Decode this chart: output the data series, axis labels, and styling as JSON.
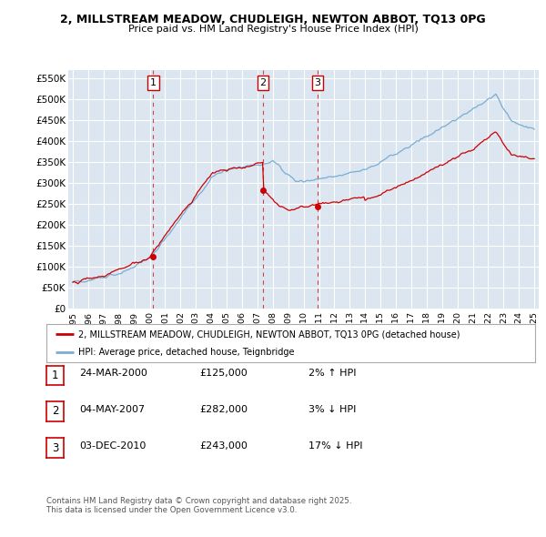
{
  "title_line1": "2, MILLSTREAM MEADOW, CHUDLEIGH, NEWTON ABBOT, TQ13 0PG",
  "title_line2": "Price paid vs. HM Land Registry's House Price Index (HPI)",
  "ylim": [
    0,
    570000
  ],
  "yticks": [
    0,
    50000,
    100000,
    150000,
    200000,
    250000,
    300000,
    350000,
    400000,
    450000,
    500000,
    550000
  ],
  "ytick_labels": [
    "£0",
    "£50K",
    "£100K",
    "£150K",
    "£200K",
    "£250K",
    "£300K",
    "£350K",
    "£400K",
    "£450K",
    "£500K",
    "£550K"
  ],
  "background_color": "#ffffff",
  "plot_bg_color": "#dce6f0",
  "grid_color": "#ffffff",
  "sale_color": "#cc0000",
  "hpi_color": "#7aadd4",
  "vline_color": "#cc0000",
  "transactions": [
    {
      "label": "1",
      "date_num": 2000.23,
      "price": 125000
    },
    {
      "label": "2",
      "date_num": 2007.37,
      "price": 282000
    },
    {
      "label": "3",
      "date_num": 2010.92,
      "price": 243000
    }
  ],
  "legend_entries": [
    "2, MILLSTREAM MEADOW, CHUDLEIGH, NEWTON ABBOT, TQ13 0PG (detached house)",
    "HPI: Average price, detached house, Teignbridge"
  ],
  "table_rows": [
    {
      "num": "1",
      "date": "24-MAR-2000",
      "price": "£125,000",
      "hpi": "2% ↑ HPI"
    },
    {
      "num": "2",
      "date": "04-MAY-2007",
      "price": "£282,000",
      "hpi": "3% ↓ HPI"
    },
    {
      "num": "3",
      "date": "03-DEC-2010",
      "price": "£243,000",
      "hpi": "17% ↓ HPI"
    }
  ],
  "footnote": "Contains HM Land Registry data © Crown copyright and database right 2025.\nThis data is licensed under the Open Government Licence v3.0.",
  "xmin": 1994.7,
  "xmax": 2025.3
}
